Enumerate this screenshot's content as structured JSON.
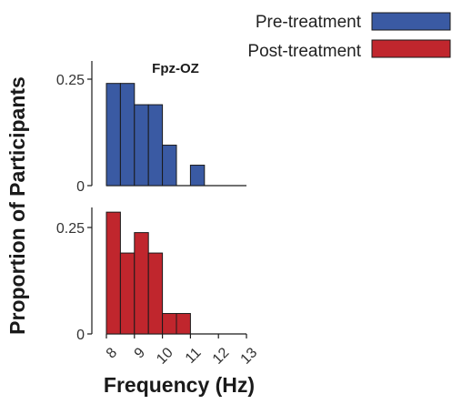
{
  "chart_data": {
    "type": "bar",
    "title": "Fpz-OZ",
    "xlabel": "Frequency (Hz)",
    "ylabel": "Proportion of Participants",
    "xlim": [
      8,
      13
    ],
    "ylim": [
      0,
      0.3
    ],
    "x_ticks": [
      "8",
      "9",
      "10",
      "11",
      "12",
      "13"
    ],
    "y_ticks": [
      "0",
      "0.25"
    ],
    "bin_width": 0.5,
    "bin_starts": [
      8,
      8.5,
      9,
      9.5,
      10,
      10.5,
      11,
      11.5,
      12,
      12.5
    ],
    "legend_position": "top-right",
    "grid": false,
    "series": [
      {
        "name": "Pre-treatment",
        "color": "#3a5aa3",
        "values": [
          0.24,
          0.24,
          0.19,
          0.19,
          0.095,
          0,
          0.048,
          0,
          0,
          0
        ]
      },
      {
        "name": "Post-treatment",
        "color": "#c0262d",
        "values": [
          0.286,
          0.19,
          0.238,
          0.19,
          0.048,
          0.048,
          0,
          0,
          0,
          0
        ]
      }
    ]
  }
}
